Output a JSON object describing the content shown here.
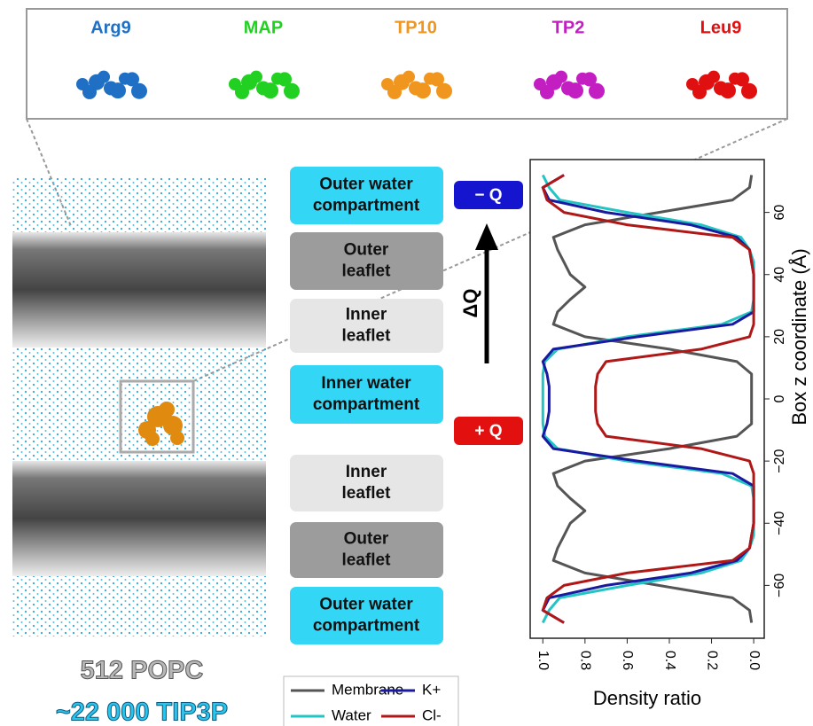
{
  "peptides": [
    {
      "name": "Arg9",
      "color": "#1f6fc4"
    },
    {
      "name": "MAP",
      "color": "#22d022"
    },
    {
      "name": "TP10",
      "color": "#f0961e"
    },
    {
      "name": "TP2",
      "color": "#c21ec2"
    },
    {
      "name": "Leu9",
      "color": "#e01010"
    }
  ],
  "compartments": [
    {
      "lines": [
        "Outer water",
        "compartment"
      ],
      "color": "#33d6f5"
    },
    {
      "lines": [
        "Outer",
        "leaflet"
      ],
      "color": "#9c9c9c"
    },
    {
      "lines": [
        "Inner",
        "leaflet"
      ],
      "color": "#e6e6e6"
    },
    {
      "lines": [
        "Inner water",
        "compartment"
      ],
      "color": "#33d6f5"
    },
    {
      "lines": [
        "Inner",
        "leaflet"
      ],
      "color": "#e6e6e6"
    },
    {
      "lines": [
        "Outer",
        "leaflet"
      ],
      "color": "#9c9c9c"
    },
    {
      "lines": [
        "Outer water",
        "compartment"
      ],
      "color": "#33d6f5"
    }
  ],
  "charges": {
    "negative": "− Q",
    "positive": "+ Q",
    "gradient": "ΔQ"
  },
  "system": {
    "lipids": "512 POPC",
    "water": "~22 000 TIP3P"
  },
  "chart_data": {
    "type": "line",
    "x_label": "Box z coordinate (Å)",
    "y_label": "Density ratio",
    "x": [
      -72,
      -68,
      -64,
      -60,
      -56,
      -52,
      -48,
      -44,
      -40,
      -36,
      -32,
      -28,
      -24,
      -20,
      -16,
      -12,
      -8,
      -4,
      0,
      4,
      8,
      12,
      16,
      20,
      24,
      28,
      32,
      36,
      40,
      44,
      48,
      52,
      56,
      60,
      64,
      68,
      72
    ],
    "xlim": [
      -77,
      77
    ],
    "xticks": [
      {
        "value": -60,
        "label": "−60"
      },
      {
        "value": -40,
        "label": "−40"
      },
      {
        "value": -20,
        "label": "−20"
      },
      0,
      20,
      40,
      60
    ],
    "ylim": [
      1.06,
      -0.05
    ],
    "yticks": [
      {
        "value": 1.0,
        "label": "1.0"
      },
      0.8,
      0.6,
      0.4,
      0.2,
      {
        "value": 0.0,
        "label": "0.0"
      }
    ],
    "legend": "bottom",
    "series": [
      {
        "name": "Membrane",
        "color": "#555555",
        "values": [
          0.01,
          0.02,
          0.1,
          0.45,
          0.8,
          0.95,
          0.93,
          0.9,
          0.87,
          0.8,
          0.87,
          0.93,
          0.95,
          0.8,
          0.4,
          0.08,
          0.01,
          0.01,
          0.01,
          0.01,
          0.01,
          0.08,
          0.4,
          0.8,
          0.95,
          0.93,
          0.87,
          0.8,
          0.87,
          0.9,
          0.93,
          0.95,
          0.8,
          0.45,
          0.1,
          0.02,
          0.01
        ]
      },
      {
        "name": "Water",
        "color": "#22c4c4",
        "values": [
          1.0,
          0.97,
          0.92,
          0.6,
          0.25,
          0.06,
          0.02,
          0.0,
          0.0,
          0.0,
          0.0,
          0.01,
          0.15,
          0.6,
          0.93,
          0.99,
          1.0,
          1.0,
          1.0,
          1.0,
          1.0,
          0.99,
          0.93,
          0.6,
          0.15,
          0.01,
          0.0,
          0.0,
          0.0,
          0.0,
          0.02,
          0.06,
          0.25,
          0.6,
          0.92,
          0.97,
          1.0
        ]
      },
      {
        "name": "K+",
        "color": "#1a1aa0",
        "values": [
          0.9,
          1.0,
          0.97,
          0.7,
          0.3,
          0.08,
          0.02,
          0.01,
          0.0,
          0.0,
          0.0,
          0.0,
          0.1,
          0.55,
          0.95,
          1.0,
          0.98,
          0.97,
          0.97,
          0.97,
          0.98,
          1.0,
          0.95,
          0.55,
          0.1,
          0.0,
          0.0,
          0.0,
          0.0,
          0.01,
          0.02,
          0.08,
          0.3,
          0.7,
          0.97,
          1.0,
          0.9
        ]
      },
      {
        "name": "Cl-",
        "color": "#b01818",
        "values": [
          0.9,
          1.0,
          0.98,
          0.9,
          0.6,
          0.1,
          0.02,
          0.01,
          0.0,
          0.0,
          0.0,
          0.0,
          0.0,
          0.02,
          0.25,
          0.7,
          0.74,
          0.75,
          0.75,
          0.75,
          0.74,
          0.7,
          0.25,
          0.02,
          0.0,
          0.0,
          0.0,
          0.0,
          0.0,
          0.01,
          0.02,
          0.1,
          0.6,
          0.9,
          0.98,
          1.0,
          0.9
        ]
      }
    ]
  }
}
